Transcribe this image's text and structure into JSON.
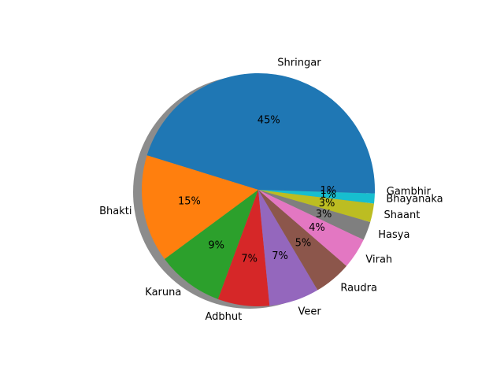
{
  "chart_data": {
    "type": "pie",
    "shadow": true,
    "start_angle_deg": 0,
    "direction": "counterclockwise",
    "slices": [
      {
        "label": "Shringar",
        "pct_label": "45%",
        "value": 45.5,
        "color": "#1f77b4"
      },
      {
        "label": "Bhakti",
        "pct_label": "15%",
        "value": 15.0,
        "color": "#ff7f0e"
      },
      {
        "label": "Karuna",
        "pct_label": "9%",
        "value": 9.3,
        "color": "#2ca02c"
      },
      {
        "label": "Adbhut",
        "pct_label": "7%",
        "value": 7.2,
        "color": "#d62728"
      },
      {
        "label": "Veer",
        "pct_label": "7%",
        "value": 7.0,
        "color": "#9467bd"
      },
      {
        "label": "Raudra",
        "pct_label": "5%",
        "value": 5.2,
        "color": "#8c564b"
      },
      {
        "label": "Virah",
        "pct_label": "4%",
        "value": 4.3,
        "color": "#e377c2"
      },
      {
        "label": "Hasya",
        "pct_label": "3%",
        "value": 2.6,
        "color": "#7f7f7f"
      },
      {
        "label": "Shaant",
        "pct_label": "3%",
        "value": 2.6,
        "color": "#bcbd22"
      },
      {
        "label": "Bhayanaka",
        "pct_label": "1%",
        "value": 1.4,
        "color": "#17becf"
      },
      {
        "label": "Gambhir",
        "pct_label": "1%",
        "value": 0.5,
        "color": "#1f77b4"
      }
    ]
  }
}
